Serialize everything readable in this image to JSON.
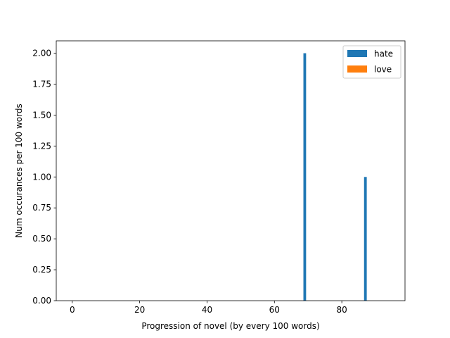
{
  "chart_data": {
    "type": "bar",
    "title": "",
    "xlabel": "Progression of novel (by every 100 words)",
    "ylabel": "Num occurances per 100 words",
    "xlim": [
      -4.75,
      98.75
    ],
    "ylim": [
      0,
      2.1
    ],
    "xticks": [
      0,
      20,
      40,
      60,
      80
    ],
    "yticks": [
      0.0,
      0.25,
      0.5,
      0.75,
      1.0,
      1.25,
      1.5,
      1.75,
      2.0
    ],
    "ytick_labels": [
      "0.00",
      "0.25",
      "0.50",
      "0.75",
      "1.00",
      "1.25",
      "1.50",
      "1.75",
      "2.00"
    ],
    "bar_width": 0.8,
    "legend_position": "upper-right",
    "series": [
      {
        "name": "hate",
        "color": "#1f77b4",
        "points": [
          {
            "x": 69,
            "y": 2
          },
          {
            "x": 87,
            "y": 1
          }
        ]
      },
      {
        "name": "love",
        "color": "#ff7f0e",
        "points": []
      }
    ]
  }
}
